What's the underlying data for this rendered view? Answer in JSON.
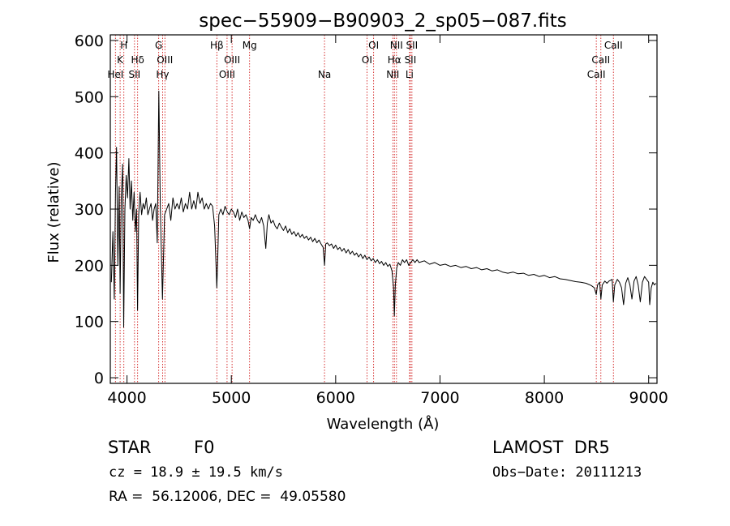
{
  "chart_data": {
    "type": "line",
    "title": "spec−55909−B90903_2_sp05−087.fits",
    "xlabel": "Wavelength (Å)",
    "ylabel": "Flux (relative)",
    "xlim": [
      3840,
      9080
    ],
    "ylim": [
      -10,
      610
    ],
    "x_ticks": [
      4000,
      5000,
      6000,
      7000,
      8000,
      9000
    ],
    "y_ticks": [
      0,
      100,
      200,
      300,
      400,
      500,
      600
    ],
    "grid": false,
    "series": [
      {
        "color": "#000000",
        "points": [
          [
            3850,
            170
          ],
          [
            3865,
            260
          ],
          [
            3878,
            140
          ],
          [
            3890,
            330
          ],
          [
            3900,
            410
          ],
          [
            3912,
            200
          ],
          [
            3925,
            340
          ],
          [
            3934,
            150
          ],
          [
            3945,
            320
          ],
          [
            3958,
            380
          ],
          [
            3968,
            90
          ],
          [
            3980,
            300
          ],
          [
            3992,
            360
          ],
          [
            4005,
            320
          ],
          [
            4018,
            390
          ],
          [
            4030,
            300
          ],
          [
            4042,
            350
          ],
          [
            4055,
            280
          ],
          [
            4068,
            330
          ],
          [
            4080,
            260
          ],
          [
            4092,
            300
          ],
          [
            4101,
            120
          ],
          [
            4112,
            290
          ],
          [
            4125,
            330
          ],
          [
            4140,
            290
          ],
          [
            4155,
            310
          ],
          [
            4170,
            300
          ],
          [
            4185,
            320
          ],
          [
            4200,
            290
          ],
          [
            4215,
            300
          ],
          [
            4230,
            310
          ],
          [
            4245,
            280
          ],
          [
            4260,
            300
          ],
          [
            4275,
            310
          ],
          [
            4290,
            240
          ],
          [
            4305,
            510
          ],
          [
            4320,
            300
          ],
          [
            4340,
            140
          ],
          [
            4360,
            290
          ],
          [
            4380,
            300
          ],
          [
            4400,
            310
          ],
          [
            4420,
            280
          ],
          [
            4440,
            320
          ],
          [
            4460,
            300
          ],
          [
            4480,
            310
          ],
          [
            4500,
            300
          ],
          [
            4520,
            320
          ],
          [
            4540,
            295
          ],
          [
            4560,
            310
          ],
          [
            4580,
            300
          ],
          [
            4600,
            330
          ],
          [
            4620,
            300
          ],
          [
            4640,
            315
          ],
          [
            4660,
            300
          ],
          [
            4680,
            330
          ],
          [
            4700,
            310
          ],
          [
            4720,
            320
          ],
          [
            4740,
            300
          ],
          [
            4760,
            310
          ],
          [
            4780,
            300
          ],
          [
            4800,
            310
          ],
          [
            4820,
            305
          ],
          [
            4840,
            270
          ],
          [
            4855,
            190
          ],
          [
            4861,
            160
          ],
          [
            4868,
            200
          ],
          [
            4880,
            290
          ],
          [
            4900,
            300
          ],
          [
            4920,
            290
          ],
          [
            4940,
            305
          ],
          [
            4960,
            295
          ],
          [
            4980,
            290
          ],
          [
            5000,
            300
          ],
          [
            5020,
            295
          ],
          [
            5040,
            285
          ],
          [
            5060,
            300
          ],
          [
            5080,
            280
          ],
          [
            5100,
            295
          ],
          [
            5120,
            285
          ],
          [
            5140,
            290
          ],
          [
            5160,
            280
          ],
          [
            5175,
            265
          ],
          [
            5190,
            285
          ],
          [
            5210,
            280
          ],
          [
            5230,
            290
          ],
          [
            5250,
            280
          ],
          [
            5270,
            275
          ],
          [
            5290,
            285
          ],
          [
            5310,
            270
          ],
          [
            5330,
            230
          ],
          [
            5345,
            275
          ],
          [
            5360,
            290
          ],
          [
            5380,
            275
          ],
          [
            5400,
            280
          ],
          [
            5420,
            270
          ],
          [
            5440,
            265
          ],
          [
            5460,
            275
          ],
          [
            5480,
            268
          ],
          [
            5500,
            262
          ],
          [
            5520,
            270
          ],
          [
            5540,
            258
          ],
          [
            5560,
            265
          ],
          [
            5580,
            255
          ],
          [
            5600,
            260
          ],
          [
            5620,
            252
          ],
          [
            5640,
            258
          ],
          [
            5660,
            250
          ],
          [
            5680,
            255
          ],
          [
            5700,
            248
          ],
          [
            5720,
            252
          ],
          [
            5740,
            245
          ],
          [
            5760,
            250
          ],
          [
            5780,
            242
          ],
          [
            5800,
            248
          ],
          [
            5820,
            240
          ],
          [
            5840,
            245
          ],
          [
            5860,
            238
          ],
          [
            5880,
            232
          ],
          [
            5893,
            200
          ],
          [
            5905,
            238
          ],
          [
            5920,
            240
          ],
          [
            5940,
            235
          ],
          [
            5960,
            238
          ],
          [
            5980,
            230
          ],
          [
            6000,
            236
          ],
          [
            6020,
            228
          ],
          [
            6040,
            232
          ],
          [
            6060,
            225
          ],
          [
            6080,
            230
          ],
          [
            6100,
            222
          ],
          [
            6120,
            228
          ],
          [
            6140,
            220
          ],
          [
            6160,
            225
          ],
          [
            6180,
            218
          ],
          [
            6200,
            222
          ],
          [
            6220,
            215
          ],
          [
            6240,
            220
          ],
          [
            6260,
            212
          ],
          [
            6280,
            218
          ],
          [
            6300,
            210
          ],
          [
            6320,
            215
          ],
          [
            6340,
            208
          ],
          [
            6360,
            212
          ],
          [
            6380,
            205
          ],
          [
            6400,
            210
          ],
          [
            6420,
            203
          ],
          [
            6440,
            207
          ],
          [
            6460,
            200
          ],
          [
            6480,
            205
          ],
          [
            6500,
            198
          ],
          [
            6520,
            202
          ],
          [
            6540,
            190
          ],
          [
            6555,
            160
          ],
          [
            6563,
            110
          ],
          [
            6572,
            165
          ],
          [
            6585,
            195
          ],
          [
            6600,
            205
          ],
          [
            6620,
            200
          ],
          [
            6640,
            210
          ],
          [
            6660,
            205
          ],
          [
            6680,
            210
          ],
          [
            6700,
            200
          ],
          [
            6720,
            205
          ],
          [
            6740,
            210
          ],
          [
            6760,
            205
          ],
          [
            6780,
            210
          ],
          [
            6800,
            205
          ],
          [
            6850,
            208
          ],
          [
            6900,
            202
          ],
          [
            6950,
            205
          ],
          [
            7000,
            200
          ],
          [
            7050,
            202
          ],
          [
            7100,
            198
          ],
          [
            7150,
            200
          ],
          [
            7200,
            196
          ],
          [
            7250,
            198
          ],
          [
            7300,
            194
          ],
          [
            7350,
            196
          ],
          [
            7400,
            192
          ],
          [
            7450,
            194
          ],
          [
            7500,
            190
          ],
          [
            7550,
            192
          ],
          [
            7600,
            188
          ],
          [
            7650,
            186
          ],
          [
            7700,
            188
          ],
          [
            7750,
            185
          ],
          [
            7800,
            186
          ],
          [
            7850,
            182
          ],
          [
            7900,
            184
          ],
          [
            7950,
            180
          ],
          [
            8000,
            182
          ],
          [
            8050,
            178
          ],
          [
            8100,
            180
          ],
          [
            8150,
            176
          ],
          [
            8200,
            175
          ],
          [
            8250,
            173
          ],
          [
            8300,
            171
          ],
          [
            8350,
            170
          ],
          [
            8400,
            168
          ],
          [
            8450,
            164
          ],
          [
            8480,
            160
          ],
          [
            8498,
            148
          ],
          [
            8510,
            165
          ],
          [
            8530,
            170
          ],
          [
            8542,
            140
          ],
          [
            8555,
            165
          ],
          [
            8580,
            172
          ],
          [
            8600,
            168
          ],
          [
            8620,
            172
          ],
          [
            8650,
            175
          ],
          [
            8662,
            135
          ],
          [
            8675,
            165
          ],
          [
            8700,
            175
          ],
          [
            8720,
            170
          ],
          [
            8740,
            160
          ],
          [
            8760,
            130
          ],
          [
            8780,
            168
          ],
          [
            8800,
            178
          ],
          [
            8820,
            165
          ],
          [
            8840,
            140
          ],
          [
            8860,
            172
          ],
          [
            8880,
            180
          ],
          [
            8900,
            165
          ],
          [
            8920,
            135
          ],
          [
            8940,
            170
          ],
          [
            8960,
            180
          ],
          [
            8980,
            175
          ],
          [
            9000,
            170
          ],
          [
            9010,
            130
          ],
          [
            9025,
            160
          ],
          [
            9040,
            170
          ],
          [
            9055,
            165
          ],
          [
            9070,
            168
          ]
        ]
      }
    ],
    "spectral_lines": [
      {
        "label": "H",
        "x": 3970,
        "row": 0
      },
      {
        "label": "K",
        "x": 3934,
        "row": 1
      },
      {
        "label": "HeI",
        "x": 3889,
        "row": 2
      },
      {
        "label": "Hδ",
        "x": 4102,
        "row": 1
      },
      {
        "label": "SII",
        "x": 4072,
        "row": 2
      },
      {
        "label": "G",
        "x": 4304,
        "row": 0
      },
      {
        "label": "OIII",
        "x": 4363,
        "row": 1
      },
      {
        "label": "Hγ",
        "x": 4341,
        "row": 2
      },
      {
        "label": "Hβ",
        "x": 4861,
        "row": 0
      },
      {
        "label": "OIII",
        "x": 5007,
        "row": 1
      },
      {
        "label": "OIII",
        "x": 4959,
        "row": 2
      },
      {
        "label": "Mg",
        "x": 5175,
        "row": 0
      },
      {
        "label": "Na",
        "x": 5893,
        "row": 2
      },
      {
        "label": "OI",
        "x": 6364,
        "row": 0
      },
      {
        "label": "OI",
        "x": 6300,
        "row": 1
      },
      {
        "label": "NII",
        "x": 6583,
        "row": 0
      },
      {
        "label": "Hα",
        "x": 6563,
        "row": 1
      },
      {
        "label": "NII",
        "x": 6548,
        "row": 2
      },
      {
        "label": "SII",
        "x": 6731,
        "row": 0
      },
      {
        "label": "SII",
        "x": 6716,
        "row": 1
      },
      {
        "label": "Li",
        "x": 6708,
        "row": 2
      },
      {
        "label": "CaII",
        "x": 8662,
        "row": 0
      },
      {
        "label": "CaII",
        "x": 8542,
        "row": 1
      },
      {
        "label": "CaII",
        "x": 8498,
        "row": 2
      }
    ]
  },
  "info": {
    "object_class": "STAR",
    "subclass": "F0",
    "survey": "LAMOST  DR5",
    "cz": "cz = 18.9 ± 19.5 km/s",
    "obs_date": "Obs−Date: 20111213",
    "coords": "RA =  56.12006, DEC =  49.05580"
  },
  "colors": {
    "spectrum": "#000000",
    "line_markers": "#cc0000"
  }
}
